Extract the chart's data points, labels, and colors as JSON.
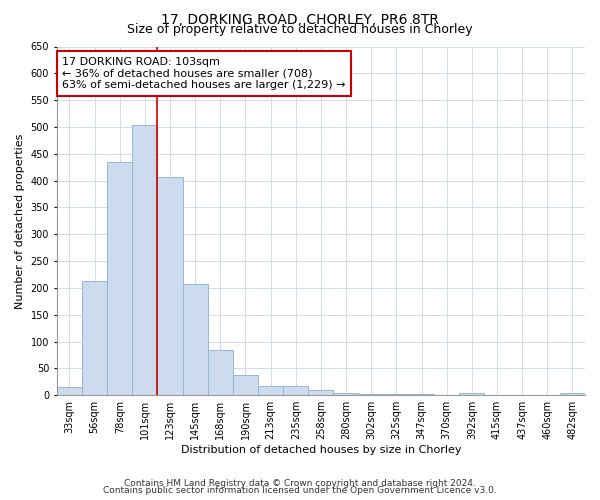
{
  "title": "17, DORKING ROAD, CHORLEY, PR6 8TR",
  "subtitle": "Size of property relative to detached houses in Chorley",
  "xlabel": "Distribution of detached houses by size in Chorley",
  "ylabel": "Number of detached properties",
  "categories": [
    "33sqm",
    "56sqm",
    "78sqm",
    "101sqm",
    "123sqm",
    "145sqm",
    "168sqm",
    "190sqm",
    "213sqm",
    "235sqm",
    "258sqm",
    "280sqm",
    "302sqm",
    "325sqm",
    "347sqm",
    "370sqm",
    "392sqm",
    "415sqm",
    "437sqm",
    "460sqm",
    "482sqm"
  ],
  "values": [
    15,
    213,
    435,
    503,
    407,
    207,
    85,
    38,
    18,
    17,
    10,
    5,
    3,
    2,
    2,
    1,
    4,
    1,
    1,
    1,
    4
  ],
  "bar_color": "#ccdcee",
  "bar_edge_color": "#8ab0d0",
  "grid_color": "#c8d4e8",
  "annotation_text": "17 DORKING ROAD: 103sqm\n← 36% of detached houses are smaller (708)\n63% of semi-detached houses are larger (1,229) →",
  "annotation_box_color": "#ffffff",
  "annotation_box_edge": "#cc0000",
  "property_line_color": "#cc0000",
  "footnote1": "Contains HM Land Registry data © Crown copyright and database right 2024.",
  "footnote2": "Contains public sector information licensed under the Open Government Licence v3.0.",
  "ylim": [
    0,
    650
  ],
  "yticks": [
    0,
    50,
    100,
    150,
    200,
    250,
    300,
    350,
    400,
    450,
    500,
    550,
    600,
    650
  ],
  "title_fontsize": 10,
  "subtitle_fontsize": 9,
  "axis_label_fontsize": 8,
  "tick_fontsize": 7,
  "annotation_fontsize": 8,
  "footnote_fontsize": 6.5
}
